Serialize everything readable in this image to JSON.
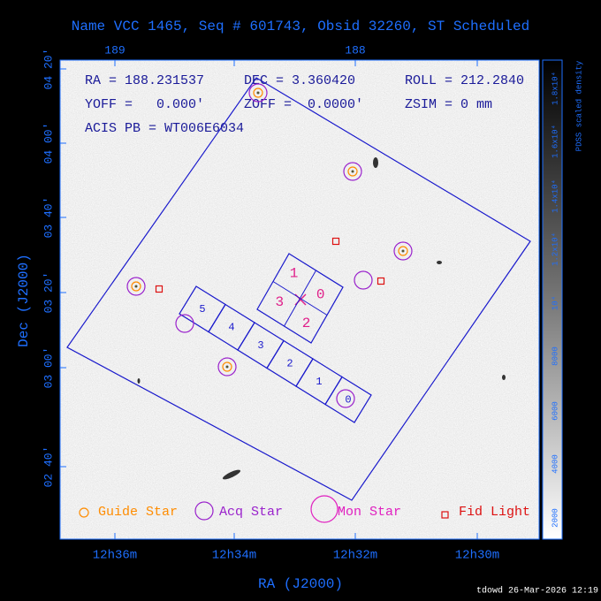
{
  "header": {
    "title": "Name VCC 1465, Seq # 601743, Obsid 32260, ST Scheduled"
  },
  "axes": {
    "top_labels": [
      "189",
      "188"
    ],
    "bottom_labels": [
      "12h36m",
      "12h34m",
      "12h32m",
      "12h30m"
    ],
    "left_labels": [
      "04 20'",
      "04 00'",
      "03 40'",
      "03 20'",
      "03 00'",
      "02 40'"
    ],
    "x_label": "RA (J2000)",
    "y_label": "Dec (J2000)"
  },
  "info": {
    "ra": "RA = 188.231537",
    "dec": "DEC = 3.360420",
    "roll": "ROLL = 212.2840",
    "yoff": "YOFF =   0.000'",
    "zoff": "ZOFF =  0.0000'",
    "zsim": "ZSIM = 0 mm",
    "acis_pb": "ACIS PB = WT006E6034"
  },
  "acis_i_chips": [
    "0",
    "1",
    "2",
    "3"
  ],
  "acis_s_chips": [
    "0",
    "1",
    "2",
    "3",
    "4",
    "5"
  ],
  "legend": [
    "Guide Star",
    "Acq Star",
    "Mon Star",
    "Fid Light"
  ],
  "colorbar": {
    "title": "PDSS scaled density",
    "labels": [
      "2000",
      "4000",
      "6000",
      "8000",
      "10⁴",
      "1.2x10⁴",
      "1.4x10⁴",
      "1.6x10⁴",
      "1.8x10⁴"
    ]
  },
  "footer": "tdowd 26-Mar-2026 12:19"
}
